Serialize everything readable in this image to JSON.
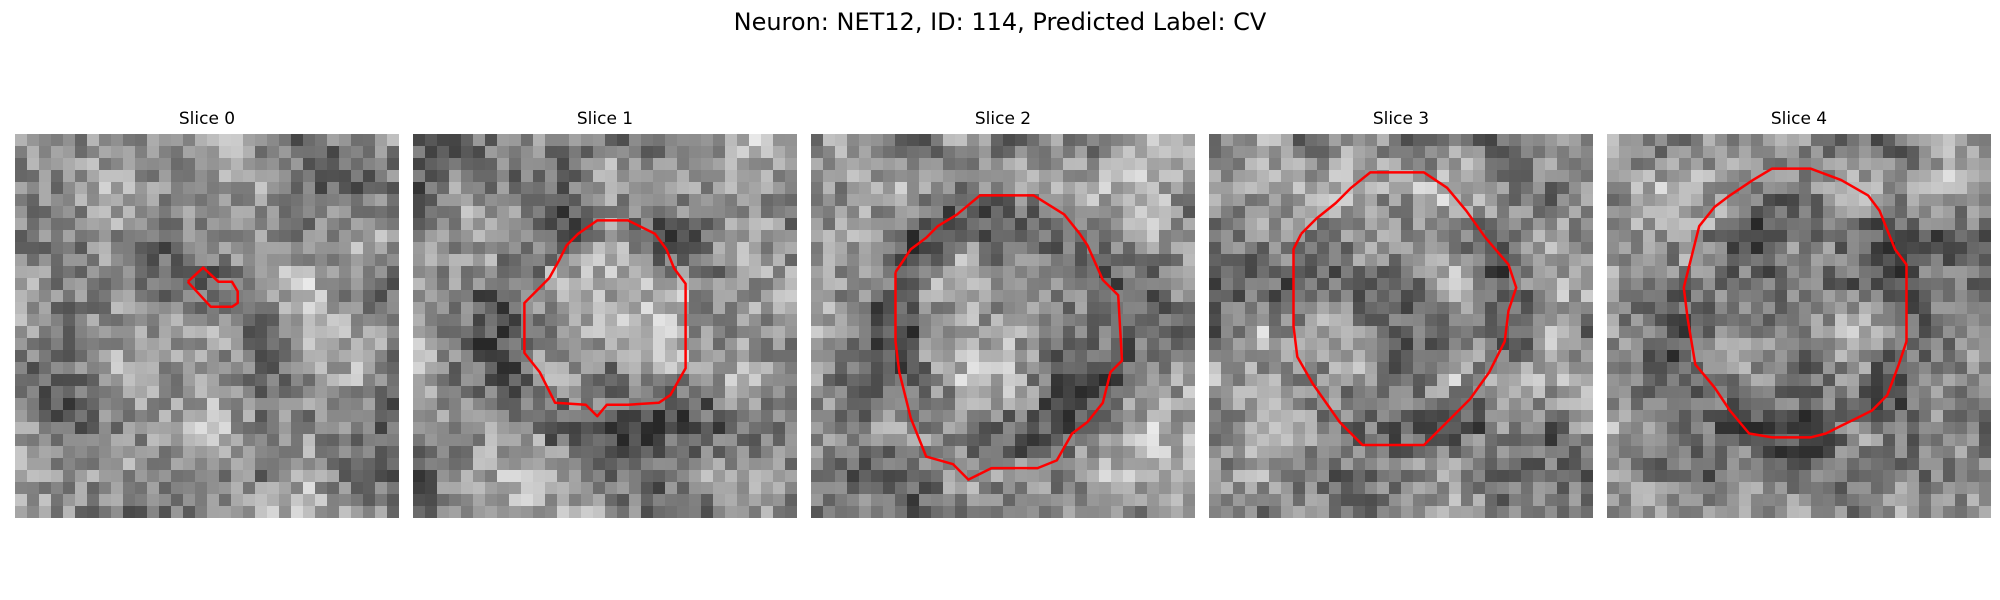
{
  "figure": {
    "title": "Neuron: NET12, ID: 114, Predicted Label: CV"
  },
  "panels": [
    {
      "title": "Slice 0",
      "seed": 11,
      "contour": [
        [
          0.45,
          0.385
        ],
        [
          0.49,
          0.348
        ],
        [
          0.53,
          0.385
        ],
        [
          0.565,
          0.385
        ],
        [
          0.58,
          0.41
        ],
        [
          0.58,
          0.44
        ],
        [
          0.565,
          0.45
        ],
        [
          0.51,
          0.45
        ],
        [
          0.45,
          0.385
        ]
      ]
    },
    {
      "title": "Slice 1",
      "seed": 23,
      "contour": [
        [
          0.355,
          0.375
        ],
        [
          0.38,
          0.33
        ],
        [
          0.4,
          0.29
        ],
        [
          0.43,
          0.26
        ],
        [
          0.48,
          0.225
        ],
        [
          0.56,
          0.225
        ],
        [
          0.63,
          0.26
        ],
        [
          0.66,
          0.3
        ],
        [
          0.68,
          0.35
        ],
        [
          0.71,
          0.39
        ],
        [
          0.71,
          0.61
        ],
        [
          0.67,
          0.68
        ],
        [
          0.64,
          0.7
        ],
        [
          0.56,
          0.705
        ],
        [
          0.505,
          0.705
        ],
        [
          0.48,
          0.735
        ],
        [
          0.45,
          0.705
        ],
        [
          0.37,
          0.7
        ],
        [
          0.33,
          0.62
        ],
        [
          0.29,
          0.57
        ],
        [
          0.29,
          0.44
        ],
        [
          0.355,
          0.375
        ]
      ]
    },
    {
      "title": "Slice 2",
      "seed": 37,
      "contour": [
        [
          0.22,
          0.36
        ],
        [
          0.26,
          0.3
        ],
        [
          0.3,
          0.27
        ],
        [
          0.33,
          0.24
        ],
        [
          0.38,
          0.21
        ],
        [
          0.44,
          0.16
        ],
        [
          0.58,
          0.16
        ],
        [
          0.66,
          0.21
        ],
        [
          0.7,
          0.26
        ],
        [
          0.72,
          0.29
        ],
        [
          0.76,
          0.38
        ],
        [
          0.8,
          0.42
        ],
        [
          0.81,
          0.59
        ],
        [
          0.78,
          0.62
        ],
        [
          0.76,
          0.7
        ],
        [
          0.72,
          0.75
        ],
        [
          0.68,
          0.78
        ],
        [
          0.64,
          0.85
        ],
        [
          0.59,
          0.87
        ],
        [
          0.54,
          0.87
        ],
        [
          0.47,
          0.87
        ],
        [
          0.41,
          0.9
        ],
        [
          0.37,
          0.86
        ],
        [
          0.3,
          0.84
        ],
        [
          0.28,
          0.79
        ],
        [
          0.26,
          0.74
        ],
        [
          0.23,
          0.62
        ],
        [
          0.22,
          0.54
        ],
        [
          0.22,
          0.36
        ]
      ]
    },
    {
      "title": "Slice 3",
      "seed": 53,
      "contour": [
        [
          0.24,
          0.26
        ],
        [
          0.28,
          0.22
        ],
        [
          0.33,
          0.18
        ],
        [
          0.37,
          0.14
        ],
        [
          0.42,
          0.1
        ],
        [
          0.56,
          0.1
        ],
        [
          0.62,
          0.14
        ],
        [
          0.67,
          0.2
        ],
        [
          0.72,
          0.27
        ],
        [
          0.78,
          0.34
        ],
        [
          0.8,
          0.4
        ],
        [
          0.78,
          0.46
        ],
        [
          0.77,
          0.54
        ],
        [
          0.73,
          0.62
        ],
        [
          0.68,
          0.69
        ],
        [
          0.62,
          0.75
        ],
        [
          0.56,
          0.81
        ],
        [
          0.47,
          0.81
        ],
        [
          0.4,
          0.81
        ],
        [
          0.34,
          0.75
        ],
        [
          0.27,
          0.65
        ],
        [
          0.23,
          0.58
        ],
        [
          0.22,
          0.5
        ],
        [
          0.22,
          0.42
        ],
        [
          0.22,
          0.3
        ],
        [
          0.24,
          0.26
        ]
      ]
    },
    {
      "title": "Slice 4",
      "seed": 71,
      "contour": [
        [
          0.22,
          0.32
        ],
        [
          0.24,
          0.24
        ],
        [
          0.28,
          0.19
        ],
        [
          0.32,
          0.16
        ],
        [
          0.38,
          0.12
        ],
        [
          0.43,
          0.09
        ],
        [
          0.53,
          0.09
        ],
        [
          0.61,
          0.12
        ],
        [
          0.68,
          0.16
        ],
        [
          0.71,
          0.2
        ],
        [
          0.75,
          0.3
        ],
        [
          0.78,
          0.34
        ],
        [
          0.78,
          0.54
        ],
        [
          0.76,
          0.6
        ],
        [
          0.73,
          0.68
        ],
        [
          0.69,
          0.72
        ],
        [
          0.65,
          0.74
        ],
        [
          0.61,
          0.76
        ],
        [
          0.57,
          0.78
        ],
        [
          0.53,
          0.79
        ],
        [
          0.43,
          0.79
        ],
        [
          0.37,
          0.78
        ],
        [
          0.32,
          0.72
        ],
        [
          0.28,
          0.66
        ],
        [
          0.23,
          0.6
        ],
        [
          0.21,
          0.48
        ],
        [
          0.2,
          0.4
        ],
        [
          0.22,
          0.32
        ]
      ]
    }
  ],
  "colors": {
    "contour": "#ff0000"
  }
}
